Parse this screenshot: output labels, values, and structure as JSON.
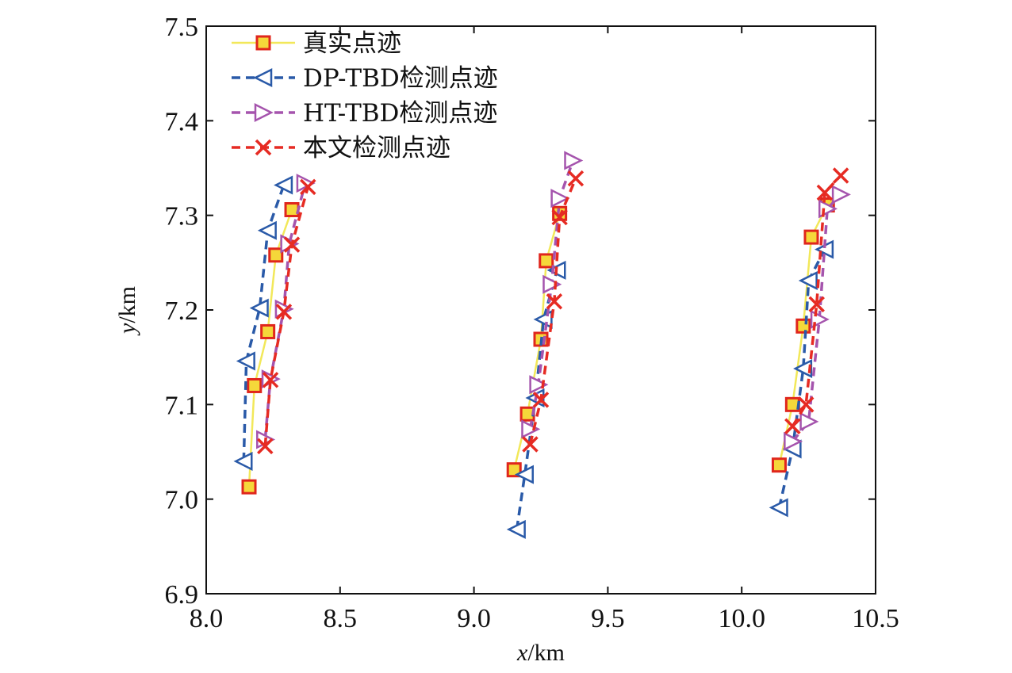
{
  "chart_data": {
    "type": "line",
    "xlabel": {
      "var": "x",
      "unit": "/km"
    },
    "ylabel": {
      "var": "y",
      "unit": "/km"
    },
    "xlim": [
      8.0,
      10.5
    ],
    "ylim": [
      6.9,
      7.5
    ],
    "xticks": [
      "8.0",
      "8.5",
      "9.0",
      "9.5",
      "10.0",
      "10.5"
    ],
    "yticks": [
      "6.9",
      "7.0",
      "7.1",
      "7.2",
      "7.3",
      "7.4",
      "7.5"
    ],
    "grid": false,
    "legend_position": "top-left",
    "series": [
      {
        "name": "真实点迹",
        "color": "#f2e85a",
        "marker": "square",
        "marker_fill": "#f5d83a",
        "marker_stroke": "#e0261c",
        "dash": "solid",
        "segments": [
          [
            [
              8.16,
              7.013
            ],
            [
              8.18,
              7.12
            ],
            [
              8.23,
              7.177
            ],
            [
              8.26,
              7.258
            ],
            [
              8.32,
              7.306
            ]
          ],
          [
            [
              9.15,
              7.031
            ],
            [
              9.2,
              7.09
            ],
            [
              9.25,
              7.169
            ],
            [
              9.27,
              7.252
            ],
            [
              9.32,
              7.302
            ]
          ],
          [
            [
              10.14,
              7.036
            ],
            [
              10.19,
              7.1
            ],
            [
              10.23,
              7.183
            ],
            [
              10.26,
              7.277
            ],
            [
              10.32,
              7.311
            ]
          ]
        ]
      },
      {
        "name": "DP-TBD检测点迹",
        "color": "#2a5aa8",
        "marker": "triangle-left",
        "dash": "dashed",
        "segments": [
          [
            [
              8.14,
              7.04
            ],
            [
              8.15,
              7.146
            ],
            [
              8.2,
              7.202
            ],
            [
              8.23,
              7.284
            ],
            [
              8.29,
              7.332
            ]
          ],
          [
            [
              9.16,
              6.968
            ],
            [
              9.19,
              7.026
            ],
            [
              9.23,
              7.107
            ],
            [
              9.26,
              7.19
            ],
            [
              9.31,
              7.242
            ]
          ],
          [
            [
              10.14,
              6.991
            ],
            [
              10.19,
              7.053
            ],
            [
              10.23,
              7.138
            ],
            [
              10.25,
              7.231
            ],
            [
              10.31,
              7.264
            ]
          ]
        ]
      },
      {
        "name": "HT-TBD检测点迹",
        "color": "#a554ad",
        "marker": "triangle-right",
        "dash": "dashed",
        "segments": [
          [
            [
              8.22,
              7.063
            ],
            [
              8.24,
              7.127
            ],
            [
              8.29,
              7.201
            ],
            [
              8.31,
              7.27
            ],
            [
              8.37,
              7.334
            ]
          ],
          [
            [
              9.21,
              7.074
            ],
            [
              9.24,
              7.121
            ],
            [
              9.29,
              7.227
            ],
            [
              9.32,
              7.318
            ],
            [
              9.37,
              7.358
            ]
          ],
          [
            [
              10.19,
              7.061
            ],
            [
              10.25,
              7.082
            ],
            [
              10.29,
              7.19
            ],
            [
              10.32,
              7.307
            ],
            [
              10.37,
              7.322
            ]
          ]
        ]
      },
      {
        "name": "本文检测点迹",
        "color": "#e62b23",
        "marker": "x",
        "dash": "dashed",
        "segments": [
          [
            [
              8.22,
              7.056
            ],
            [
              8.24,
              7.126
            ],
            [
              8.29,
              7.198
            ],
            [
              8.32,
              7.269
            ],
            [
              8.38,
              7.33
            ]
          ],
          [
            [
              9.21,
              7.058
            ],
            [
              9.25,
              7.105
            ],
            [
              9.3,
              7.209
            ],
            [
              9.32,
              7.298
            ],
            [
              9.38,
              7.339
            ]
          ],
          [
            [
              10.19,
              7.077
            ],
            [
              10.24,
              7.1
            ],
            [
              10.28,
              7.206
            ],
            [
              10.31,
              7.324
            ],
            [
              10.37,
              7.342
            ]
          ]
        ]
      }
    ]
  }
}
